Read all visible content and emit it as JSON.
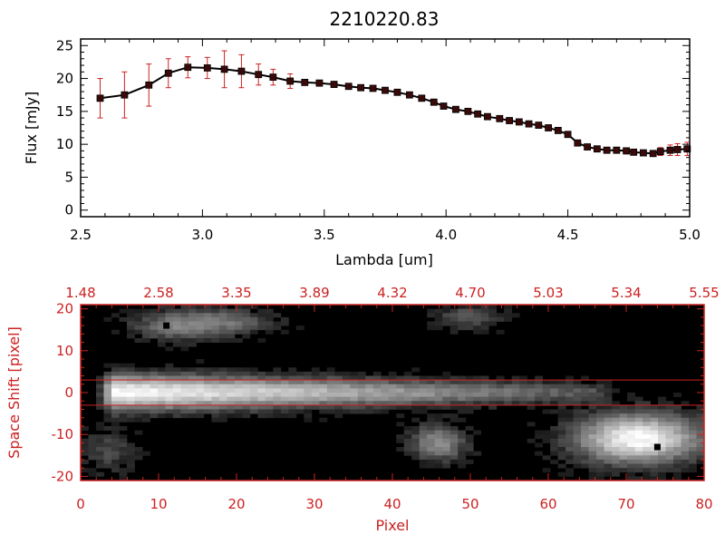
{
  "title": "2210220.83",
  "colors": {
    "axis": "#000000",
    "accent": "#cc2222",
    "marker": "#3a0a0a",
    "errbar": "#cc2222",
    "bg": "#ffffff",
    "image_bg": "#000000"
  },
  "chart_data": [
    {
      "type": "line",
      "title": "2210220.83",
      "xlabel": "Lambda [um]",
      "ylabel": "Flux [mJy]",
      "xlim": [
        2.5,
        5.0
      ],
      "ylim": [
        -1,
        26
      ],
      "xticks": [
        "2.5",
        "3.0",
        "3.5",
        "4.0",
        "4.5",
        "5.0"
      ],
      "yticks": [
        "0",
        "5",
        "10",
        "15",
        "20",
        "25"
      ],
      "series": [
        {
          "x": [
            2.58,
            2.68,
            2.78,
            2.86,
            2.94,
            3.02,
            3.09,
            3.16,
            3.23,
            3.29,
            3.36,
            3.42,
            3.48,
            3.54,
            3.6,
            3.65,
            3.7,
            3.75,
            3.8,
            3.85,
            3.9,
            3.95,
            3.99,
            4.04,
            4.09,
            4.13,
            4.17,
            4.22,
            4.26,
            4.3,
            4.34,
            4.38,
            4.42,
            4.46,
            4.5,
            4.54,
            4.58,
            4.62,
            4.66,
            4.7,
            4.74,
            4.77,
            4.81,
            4.85,
            4.88,
            4.92,
            4.95,
            4.99
          ],
          "y": [
            17.0,
            17.5,
            19.0,
            20.8,
            21.7,
            21.6,
            21.4,
            21.1,
            20.6,
            20.2,
            19.6,
            19.4,
            19.3,
            19.1,
            18.8,
            18.6,
            18.5,
            18.2,
            17.9,
            17.5,
            17.0,
            16.4,
            15.8,
            15.3,
            15.0,
            14.6,
            14.2,
            13.9,
            13.6,
            13.4,
            13.1,
            12.9,
            12.5,
            12.1,
            11.5,
            10.2,
            9.6,
            9.3,
            9.1,
            9.1,
            9.0,
            8.8,
            8.7,
            8.6,
            8.9,
            9.1,
            9.2,
            9.3
          ],
          "yerr": [
            3.0,
            3.5,
            3.2,
            2.2,
            1.6,
            1.6,
            2.8,
            2.5,
            1.6,
            1.2,
            1.1,
            0,
            0,
            0,
            0,
            0,
            0,
            0,
            0,
            0,
            0,
            0,
            0,
            0,
            0,
            0,
            0,
            0,
            0,
            0,
            0,
            0,
            0,
            0,
            0,
            0,
            0,
            0,
            0,
            0,
            0,
            0,
            0.3,
            0.4,
            0.6,
            0.8,
            0.9,
            1.0
          ]
        }
      ]
    },
    {
      "type": "heatmap",
      "xlabel": "Pixel",
      "ylabel": "Space Shift [pixel]",
      "xlim": [
        0,
        80
      ],
      "ylim": [
        -21,
        21
      ],
      "xticks": [
        "0",
        "10",
        "20",
        "30",
        "40",
        "50",
        "60",
        "70",
        "80"
      ],
      "yticks": [
        "-20",
        "-10",
        "0",
        "10",
        "20"
      ],
      "top_ticks": [
        "1.48",
        "2.58",
        "3.35",
        "3.89",
        "4.32",
        "4.70",
        "5.03",
        "5.34",
        "5.55"
      ],
      "hlines": [
        3,
        -3
      ],
      "features": [
        {
          "kind": "trace",
          "x0": 4,
          "x1": 66,
          "y": 0,
          "peak": 1.0,
          "fade": 0.25
        },
        {
          "kind": "blob",
          "x": 72,
          "y": -11,
          "sx": 5.5,
          "sy": 4.0,
          "peak": 1.0
        },
        {
          "kind": "blob",
          "x": 46,
          "y": -12,
          "sx": 2.5,
          "sy": 3.0,
          "peak": 0.5
        },
        {
          "kind": "blob",
          "x": 12,
          "y": 16,
          "sx": 4.0,
          "sy": 2.5,
          "peak": 0.4
        },
        {
          "kind": "blob",
          "x": 19,
          "y": 17,
          "sx": 4.0,
          "sy": 2.0,
          "peak": 0.32
        },
        {
          "kind": "blob",
          "x": 50,
          "y": 18,
          "sx": 3.0,
          "sy": 2.0,
          "peak": 0.28
        },
        {
          "kind": "blob",
          "x": 3,
          "y": -14,
          "sx": 2.5,
          "sy": 3.5,
          "peak": 0.22
        }
      ],
      "dead_pixels": [
        [
          11,
          16
        ],
        [
          74,
          -13
        ]
      ]
    }
  ]
}
